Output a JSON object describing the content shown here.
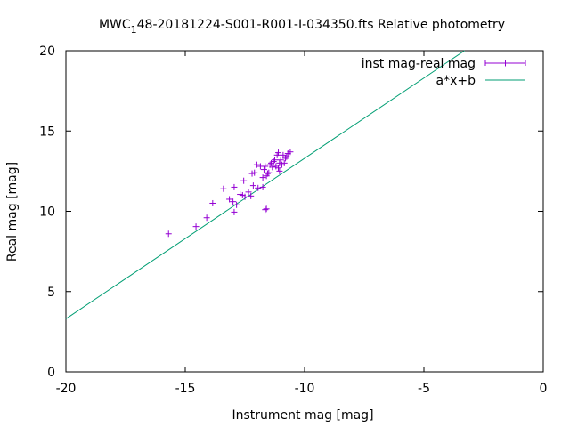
{
  "chart_data": {
    "type": "scatter",
    "title_main": "MWC",
    "title_sub": "1",
    "title_rest": "48-20181224-S001-R001-I-034350.fts Relative photometry",
    "xlabel": "Instrument mag [mag]",
    "ylabel": "Real mag [mag]",
    "xlim": [
      -20,
      0
    ],
    "ylim": [
      0,
      20
    ],
    "xticks": [
      -20,
      -15,
      -10,
      -5,
      0
    ],
    "yticks": [
      0,
      5,
      10,
      15,
      20
    ],
    "grid": false,
    "legend_position": "top-right",
    "series": [
      {
        "name": "inst mag-real mag",
        "kind": "points-with-errorbars",
        "color": "#9400d3",
        "points": [
          [
            -15.7,
            8.6
          ],
          [
            -14.55,
            9.05
          ],
          [
            -14.1,
            9.6
          ],
          [
            -13.85,
            10.5
          ],
          [
            -13.4,
            11.4
          ],
          [
            -13.15,
            10.75
          ],
          [
            -13.0,
            10.6
          ],
          [
            -12.95,
            11.5
          ],
          [
            -12.95,
            9.95
          ],
          [
            -12.85,
            10.4
          ],
          [
            -12.7,
            11.05
          ],
          [
            -12.6,
            11.0
          ],
          [
            -12.55,
            11.9
          ],
          [
            -12.5,
            10.9
          ],
          [
            -12.35,
            11.2
          ],
          [
            -12.25,
            10.95
          ],
          [
            -12.2,
            12.35
          ],
          [
            -12.15,
            11.6
          ],
          [
            -12.1,
            12.4
          ],
          [
            -12.0,
            12.9
          ],
          [
            -11.95,
            11.45
          ],
          [
            -11.85,
            12.8
          ],
          [
            -11.75,
            12.1
          ],
          [
            -11.75,
            11.5
          ],
          [
            -11.7,
            12.6
          ],
          [
            -11.65,
            12.8
          ],
          [
            -11.6,
            12.2
          ],
          [
            -11.55,
            12.35
          ],
          [
            -11.6,
            10.15
          ],
          [
            -11.5,
            12.4
          ],
          [
            -11.45,
            12.9
          ],
          [
            -11.4,
            13.0
          ],
          [
            -11.35,
            12.75
          ],
          [
            -11.3,
            13.1
          ],
          [
            -11.25,
            13.2
          ],
          [
            -11.2,
            12.8
          ],
          [
            -11.15,
            13.5
          ],
          [
            -11.1,
            13.65
          ],
          [
            -11.1,
            12.7
          ],
          [
            -11.05,
            13.0
          ],
          [
            -11.05,
            12.5
          ],
          [
            -11.0,
            13.2
          ],
          [
            -10.95,
            12.9
          ],
          [
            -10.9,
            13.5
          ],
          [
            -10.85,
            13.0
          ],
          [
            -10.8,
            13.3
          ],
          [
            -10.75,
            13.4
          ],
          [
            -10.7,
            13.6
          ],
          [
            -10.6,
            13.7
          ],
          [
            -11.65,
            10.1
          ]
        ]
      },
      {
        "name": "a*x+b",
        "kind": "line",
        "color": "#009e73",
        "slope": 1.0,
        "intercept": 23.3
      }
    ]
  }
}
